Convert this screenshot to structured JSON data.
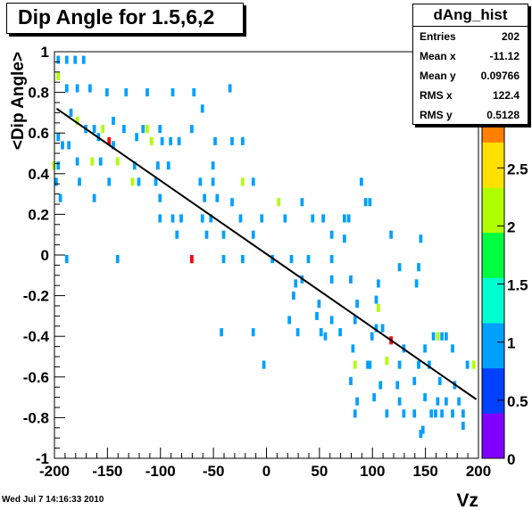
{
  "title": "Dip Angle for 1.5,6,2",
  "stats": {
    "name": "dAng_hist",
    "rows": [
      {
        "label": "Entries",
        "value": "202"
      },
      {
        "label": "Mean x",
        "value": "-11.12"
      },
      {
        "label": "Mean y",
        "value": "0.09766"
      },
      {
        "label": "RMS x",
        "value": "122.4"
      },
      {
        "label": "RMS y",
        "value": "0.5128"
      }
    ]
  },
  "date": "Wed Jul  7 14:16:33 2010",
  "colors": {
    "palette": [
      "#8000ff",
      "#0040ff",
      "#00a0ff",
      "#00ffd0",
      "#00ff40",
      "#b0ff00",
      "#ffe000",
      "#ff8000",
      "#ff0000"
    ]
  },
  "chart_data": {
    "type": "heatmap",
    "xlabel": "Vz",
    "ylabel": "<Dip Angle>",
    "xlim": [
      -200,
      200
    ],
    "ylim": [
      -1,
      1
    ],
    "x_ticks": [
      -200,
      -150,
      -100,
      -50,
      0,
      50,
      100,
      150,
      200
    ],
    "y_ticks": [
      -1,
      -0.8,
      -0.6,
      -0.4,
      -0.2,
      0,
      0.2,
      0.4,
      0.6,
      0.8,
      1
    ],
    "color_ticks": [
      0,
      0.5,
      1,
      1.5,
      2,
      2.5,
      3,
      3.5
    ],
    "zlim": [
      0,
      3.5
    ],
    "bin_width": [
      4,
      0.04
    ],
    "fit_line": {
      "x": [
        -198,
        198
      ],
      "y": [
        0.72,
        -0.71
      ]
    },
    "cells": [
      [
        -196,
        0.96,
        1
      ],
      [
        -188,
        0.96,
        1
      ],
      [
        -180,
        0.96,
        1
      ],
      [
        -172,
        0.96,
        1
      ],
      [
        -196,
        0.88,
        2
      ],
      [
        -188,
        0.82,
        1
      ],
      [
        -178,
        0.82,
        1
      ],
      [
        -166,
        0.82,
        1
      ],
      [
        -150,
        0.8,
        1
      ],
      [
        -132,
        0.8,
        1
      ],
      [
        -112,
        0.8,
        1
      ],
      [
        -88,
        0.8,
        1
      ],
      [
        -68,
        0.8,
        1
      ],
      [
        -60,
        0.72,
        1
      ],
      [
        -34,
        0.82,
        1
      ],
      [
        -184,
        0.7,
        1
      ],
      [
        -178,
        0.66,
        2
      ],
      [
        -170,
        0.62,
        1
      ],
      [
        -162,
        0.62,
        1
      ],
      [
        -154,
        0.62,
        2
      ],
      [
        -144,
        0.66,
        1
      ],
      [
        -134,
        0.62,
        1
      ],
      [
        -116,
        0.62,
        1
      ],
      [
        -100,
        0.62,
        1
      ],
      [
        -70,
        0.62,
        1
      ],
      [
        -112,
        0.62,
        2
      ],
      [
        -196,
        0.58,
        1
      ],
      [
        -192,
        0.54,
        1
      ],
      [
        -186,
        0.54,
        1
      ],
      [
        -158,
        0.58,
        1
      ],
      [
        -148,
        0.56,
        4
      ],
      [
        -144,
        0.54,
        1
      ],
      [
        -122,
        0.58,
        1
      ],
      [
        -108,
        0.56,
        2
      ],
      [
        -98,
        0.56,
        1
      ],
      [
        -90,
        0.56,
        1
      ],
      [
        -82,
        0.56,
        1
      ],
      [
        -48,
        0.56,
        1
      ],
      [
        -32,
        0.56,
        1
      ],
      [
        -22,
        0.56,
        1
      ],
      [
        -200,
        0.44,
        2
      ],
      [
        -196,
        0.44,
        1
      ],
      [
        -178,
        0.46,
        1
      ],
      [
        -164,
        0.46,
        2
      ],
      [
        -156,
        0.46,
        1
      ],
      [
        -140,
        0.46,
        2
      ],
      [
        -124,
        0.44,
        1
      ],
      [
        -102,
        0.44,
        1
      ],
      [
        -92,
        0.44,
        1
      ],
      [
        -50,
        0.44,
        1
      ],
      [
        -198,
        0.36,
        1
      ],
      [
        -176,
        0.36,
        1
      ],
      [
        -148,
        0.36,
        1
      ],
      [
        -126,
        0.36,
        2
      ],
      [
        -120,
        0.36,
        1
      ],
      [
        -104,
        0.36,
        1
      ],
      [
        -62,
        0.36,
        1
      ],
      [
        -50,
        0.36,
        1
      ],
      [
        -22,
        0.36,
        2
      ],
      [
        -12,
        0.36,
        1
      ],
      [
        90,
        0.36,
        1
      ],
      [
        -194,
        0.28,
        1
      ],
      [
        -162,
        0.28,
        1
      ],
      [
        -100,
        0.28,
        1
      ],
      [
        -58,
        0.28,
        1
      ],
      [
        -46,
        0.28,
        1
      ],
      [
        -32,
        0.26,
        1
      ],
      [
        12,
        0.26,
        2
      ],
      [
        34,
        0.26,
        1
      ],
      [
        94,
        0.26,
        1
      ],
      [
        98,
        0.26,
        1
      ],
      [
        -100,
        0.18,
        1
      ],
      [
        -88,
        0.18,
        1
      ],
      [
        -80,
        0.18,
        1
      ],
      [
        -60,
        0.18,
        1
      ],
      [
        -52,
        0.18,
        1
      ],
      [
        -24,
        0.18,
        1
      ],
      [
        -4,
        0.18,
        1
      ],
      [
        18,
        0.18,
        1
      ],
      [
        44,
        0.18,
        1
      ],
      [
        54,
        0.18,
        1
      ],
      [
        74,
        0.18,
        1
      ],
      [
        78,
        0.18,
        1
      ],
      [
        -84,
        0.1,
        1
      ],
      [
        -56,
        0.1,
        1
      ],
      [
        -40,
        0.1,
        1
      ],
      [
        -12,
        0.1,
        1
      ],
      [
        62,
        0.1,
        1
      ],
      [
        118,
        0.1,
        1
      ],
      [
        146,
        0.08,
        1
      ],
      [
        74,
        0.08,
        1
      ],
      [
        -188,
        -0.02,
        1
      ],
      [
        -140,
        -0.02,
        1
      ],
      [
        -70,
        -0.02,
        6
      ],
      [
        -40,
        -0.02,
        1
      ],
      [
        -22,
        -0.02,
        1
      ],
      [
        6,
        -0.02,
        1
      ],
      [
        24,
        -0.02,
        1
      ],
      [
        40,
        -0.02,
        1
      ],
      [
        62,
        -0.02,
        1
      ],
      [
        126,
        -0.06,
        1
      ],
      [
        144,
        -0.06,
        1
      ],
      [
        28,
        -0.14,
        1
      ],
      [
        34,
        -0.12,
        1
      ],
      [
        62,
        -0.12,
        1
      ],
      [
        80,
        -0.12,
        1
      ],
      [
        106,
        -0.14,
        1
      ],
      [
        142,
        -0.14,
        1
      ],
      [
        26,
        -0.2,
        1
      ],
      [
        50,
        -0.24,
        1
      ],
      [
        86,
        -0.24,
        1
      ],
      [
        104,
        -0.22,
        1
      ],
      [
        106,
        -0.26,
        2
      ],
      [
        22,
        -0.32,
        1
      ],
      [
        48,
        -0.3,
        1
      ],
      [
        62,
        -0.32,
        1
      ],
      [
        84,
        -0.32,
        1
      ],
      [
        -42,
        -0.38,
        1
      ],
      [
        -12,
        -0.38,
        1
      ],
      [
        30,
        -0.38,
        1
      ],
      [
        52,
        -0.38,
        1
      ],
      [
        56,
        -0.4,
        1
      ],
      [
        70,
        -0.38,
        1
      ],
      [
        100,
        -0.4,
        1
      ],
      [
        104,
        -0.36,
        1
      ],
      [
        110,
        -0.36,
        1
      ],
      [
        118,
        -0.42,
        4
      ],
      [
        158,
        -0.4,
        1
      ],
      [
        162,
        -0.4,
        2
      ],
      [
        166,
        -0.4,
        1
      ],
      [
        170,
        -0.4,
        1
      ],
      [
        82,
        -0.46,
        1
      ],
      [
        130,
        -0.46,
        1
      ],
      [
        150,
        -0.46,
        1
      ],
      [
        176,
        -0.46,
        1
      ],
      [
        -2,
        -0.54,
        1
      ],
      [
        84,
        -0.54,
        2
      ],
      [
        96,
        -0.54,
        1
      ],
      [
        98,
        -0.54,
        1
      ],
      [
        114,
        -0.52,
        2
      ],
      [
        126,
        -0.54,
        1
      ],
      [
        144,
        -0.54,
        1
      ],
      [
        154,
        -0.54,
        1
      ],
      [
        190,
        -0.54,
        1
      ],
      [
        196,
        -0.54,
        2
      ],
      [
        80,
        -0.62,
        1
      ],
      [
        108,
        -0.64,
        1
      ],
      [
        124,
        -0.64,
        1
      ],
      [
        140,
        -0.62,
        1
      ],
      [
        164,
        -0.62,
        1
      ],
      [
        178,
        -0.64,
        1
      ],
      [
        102,
        -0.7,
        1
      ],
      [
        126,
        -0.72,
        1
      ],
      [
        150,
        -0.7,
        1
      ],
      [
        162,
        -0.72,
        1
      ],
      [
        170,
        -0.72,
        1
      ],
      [
        182,
        -0.72,
        1
      ],
      [
        86,
        -0.72,
        1
      ],
      [
        84,
        -0.78,
        1
      ],
      [
        114,
        -0.78,
        1
      ],
      [
        130,
        -0.78,
        1
      ],
      [
        140,
        -0.78,
        1
      ],
      [
        156,
        -0.78,
        1
      ],
      [
        160,
        -0.78,
        1
      ],
      [
        166,
        -0.78,
        1
      ],
      [
        176,
        -0.78,
        1
      ],
      [
        186,
        -0.78,
        1
      ],
      [
        148,
        -0.86,
        1
      ],
      [
        146,
        -0.88,
        1
      ],
      [
        186,
        -0.84,
        1
      ]
    ]
  }
}
